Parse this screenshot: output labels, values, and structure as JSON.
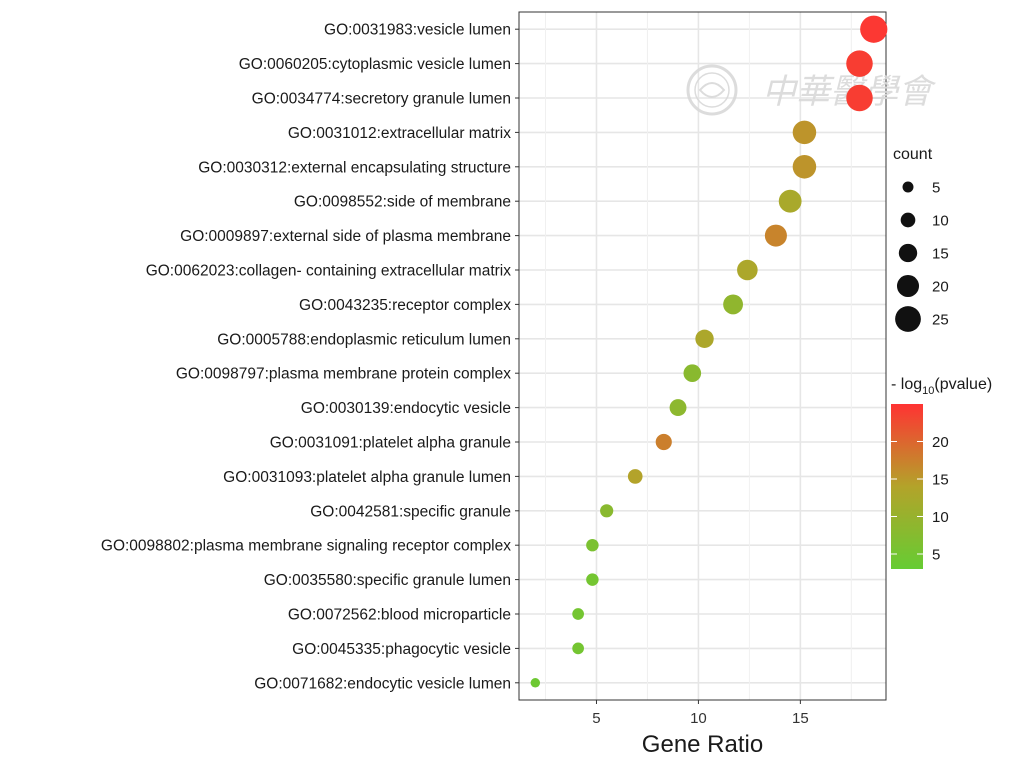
{
  "chart_data": {
    "type": "scatter",
    "xlabel": "Gene Ratio",
    "ylabel": "",
    "xlim": [
      1.2,
      19.2
    ],
    "x_ticks": [
      5,
      10,
      15
    ],
    "grid": true,
    "categories": [
      "GO:0031983:vesicle lumen",
      "GO:0060205:cytoplasmic vesicle lumen",
      "GO:0034774:secretory granule lumen",
      "GO:0031012:extracellular matrix",
      "GO:0030312:external encapsulating structure",
      "GO:0098552:side of membrane",
      "GO:0009897:external side of plasma membrane",
      "GO:0062023:collagen- containing extracellular matrix",
      "GO:0043235:receptor complex",
      "GO:0005788:endoplasmic reticulum lumen",
      "GO:0098797:plasma membrane protein complex",
      "GO:0030139:endocytic vesicle",
      "GO:0031091:platelet alpha granule",
      "GO:0031093:platelet alpha granule lumen",
      "GO:0042581:specific granule",
      "GO:0098802:plasma membrane signaling receptor complex",
      "GO:0035580:specific granule lumen",
      "GO:0072562:blood microparticle",
      "GO:0045335:phagocytic vesicle",
      "GO:0071682:endocytic vesicle lumen"
    ],
    "gene_ratio": [
      18.6,
      17.9,
      17.9,
      15.2,
      15.2,
      14.5,
      13.8,
      12.4,
      11.7,
      10.3,
      9.7,
      9.0,
      8.3,
      6.9,
      5.5,
      4.8,
      4.8,
      4.1,
      4.1,
      2.0
    ],
    "count": [
      27,
      26,
      26,
      22,
      22,
      21,
      20,
      18,
      17,
      15,
      14,
      13,
      12,
      10,
      8,
      7,
      7,
      6,
      6,
      3
    ],
    "neg_log10_pvalue": [
      24.5,
      24,
      24,
      15.5,
      15.5,
      12.5,
      17,
      13,
      9,
      13,
      8,
      8.5,
      17.5,
      14,
      8,
      6,
      5,
      5,
      5,
      4
    ],
    "size_legend": {
      "title": "count",
      "values": [
        "5",
        "10",
        "15",
        "20",
        "25"
      ]
    },
    "color_legend": {
      "title_prefix": "- log",
      "title_sub": "10",
      "title_suffix": "(pvalue)",
      "min": 3,
      "max": 25,
      "ticks": [
        "5",
        "10",
        "15",
        "20"
      ],
      "low_color": "#66cc33",
      "mid_color": "#b3a32a",
      "high_color": "#ff3333"
    }
  },
  "watermark": {
    "text": "中華醫學會"
  }
}
